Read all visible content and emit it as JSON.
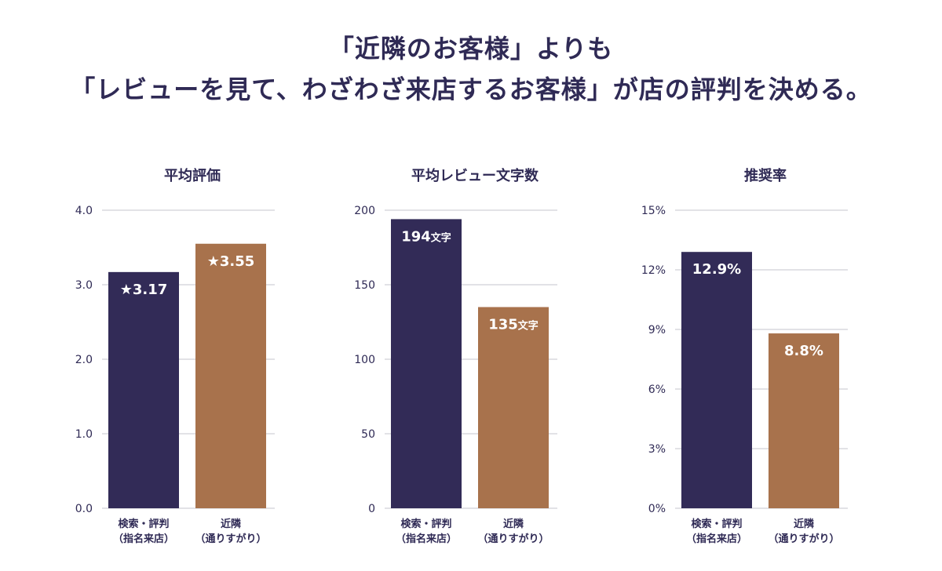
{
  "headline": {
    "line1": "「近隣のお客様」よりも",
    "line2": "「レビューを見て、わざわざ来店するお客様」が店の評判を決める。"
  },
  "colors": {
    "navy": "#322b57",
    "copper": "#a8724c",
    "text": "#2f2a55",
    "grid": "#e2e2e6"
  },
  "chart_data": [
    {
      "type": "bar",
      "title": "平均評価",
      "categories": [
        [
          "検索・評判",
          "（指名来店）"
        ],
        [
          "近隣",
          "（通りすがり）"
        ]
      ],
      "values": [
        3.17,
        3.55
      ],
      "value_labels": [
        {
          "prefix": "★",
          "value": "3.17",
          "unit": ""
        },
        {
          "prefix": "★",
          "value": "3.55",
          "unit": ""
        }
      ],
      "ylim": [
        0,
        4
      ],
      "yticks": [
        "0.0",
        "1.0",
        "2.0",
        "3.0",
        "4.0"
      ],
      "ytick_values": [
        0,
        1,
        2,
        3,
        4
      ],
      "grid": true,
      "bar_colors": [
        "#322b57",
        "#a8724c"
      ]
    },
    {
      "type": "bar",
      "title": "平均レビュー文字数",
      "categories": [
        [
          "検索・評判",
          "（指名来店）"
        ],
        [
          "近隣",
          "（通りすがり）"
        ]
      ],
      "values": [
        194,
        135
      ],
      "value_labels": [
        {
          "prefix": "",
          "value": "194",
          "unit": "文字"
        },
        {
          "prefix": "",
          "value": "135",
          "unit": "文字"
        }
      ],
      "ylim": [
        0,
        200
      ],
      "yticks": [
        "0",
        "50",
        "100",
        "150",
        "200"
      ],
      "ytick_values": [
        0,
        50,
        100,
        150,
        200
      ],
      "grid": true,
      "bar_colors": [
        "#322b57",
        "#a8724c"
      ]
    },
    {
      "type": "bar",
      "title": "推奨率",
      "categories": [
        [
          "検索・評判",
          "（指名来店）"
        ],
        [
          "近隣",
          "（通りすがり）"
        ]
      ],
      "values": [
        12.9,
        8.8
      ],
      "value_labels": [
        {
          "prefix": "",
          "value": "12.9%",
          "unit": ""
        },
        {
          "prefix": "",
          "value": "8.8%",
          "unit": ""
        }
      ],
      "ylim": [
        0,
        15
      ],
      "yticks": [
        "0%",
        "3%",
        "6%",
        "9%",
        "12%",
        "15%"
      ],
      "ytick_values": [
        0,
        3,
        6,
        9,
        12,
        15
      ],
      "grid": true,
      "bar_colors": [
        "#322b57",
        "#a8724c"
      ]
    }
  ]
}
